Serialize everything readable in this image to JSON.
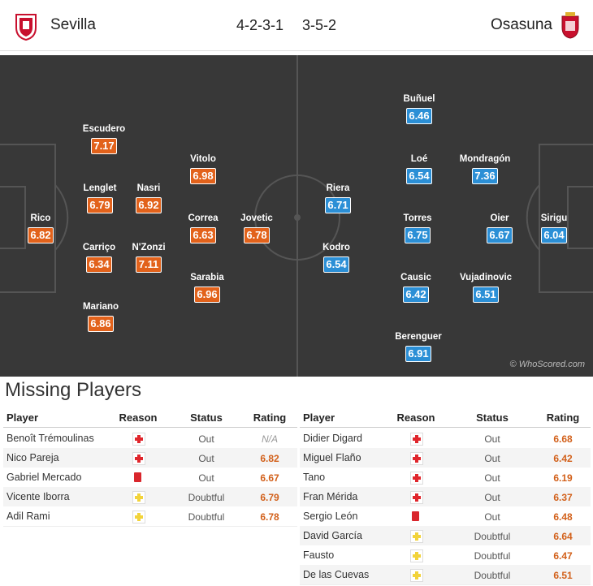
{
  "header": {
    "home_team": "Sevilla",
    "home_formation": "4-2-3-1",
    "away_formation": "3-5-2",
    "away_team": "Osasuna"
  },
  "pitch": {
    "home_players": [
      {
        "name": "Rico",
        "rating": 6.82
      },
      {
        "name": "Escudero",
        "rating": 7.17
      },
      {
        "name": "Lenglet",
        "rating": 6.79
      },
      {
        "name": "Carriço",
        "rating": 6.34
      },
      {
        "name": "Mariano",
        "rating": 6.86
      },
      {
        "name": "Nasri",
        "rating": 6.92
      },
      {
        "name": "N'Zonzi",
        "rating": 7.11
      },
      {
        "name": "Vitolo",
        "rating": 6.98
      },
      {
        "name": "Correa",
        "rating": 6.63
      },
      {
        "name": "Sarabia",
        "rating": 6.96
      },
      {
        "name": "Jovetic",
        "rating": 6.78
      }
    ],
    "away_players": [
      {
        "name": "Buñuel",
        "rating": 6.46
      },
      {
        "name": "Loé",
        "rating": 6.54
      },
      {
        "name": "Torres",
        "rating": 6.75
      },
      {
        "name": "Causic",
        "rating": 6.42
      },
      {
        "name": "Berenguer",
        "rating": 6.91
      },
      {
        "name": "Mondragón",
        "rating": 7.36
      },
      {
        "name": "Oier",
        "rating": 6.67
      },
      {
        "name": "Vujadinovic",
        "rating": 6.51
      },
      {
        "name": "Riera",
        "rating": 6.71
      },
      {
        "name": "Kodro",
        "rating": 6.54
      },
      {
        "name": "Sirigu",
        "rating": 6.04
      }
    ],
    "watermark": "© WhoScored.com"
  },
  "missing": {
    "title": "Missing Players",
    "columns": [
      "Player",
      "Reason",
      "Status",
      "Rating"
    ],
    "home": [
      {
        "player": "Benoît Trémoulinas",
        "reason": "injury",
        "status": "Out",
        "rating": "N/A"
      },
      {
        "player": "Nico Pareja",
        "reason": "injury",
        "status": "Out",
        "rating": 6.82
      },
      {
        "player": "Gabriel Mercado",
        "reason": "red-card",
        "status": "Out",
        "rating": 6.67
      },
      {
        "player": "Vicente Iborra",
        "reason": "doubtful",
        "status": "Doubtful",
        "rating": 6.79
      },
      {
        "player": "Adil Rami",
        "reason": "doubtful",
        "status": "Doubtful",
        "rating": 6.78
      }
    ],
    "away": [
      {
        "player": "Didier Digard",
        "reason": "injury",
        "status": "Out",
        "rating": 6.68
      },
      {
        "player": "Miguel Flaño",
        "reason": "injury",
        "status": "Out",
        "rating": 6.42
      },
      {
        "player": "Tano",
        "reason": "injury",
        "status": "Out",
        "rating": 6.19
      },
      {
        "player": "Fran Mérida",
        "reason": "injury",
        "status": "Out",
        "rating": 6.37
      },
      {
        "player": "Sergio León",
        "reason": "red-card",
        "status": "Out",
        "rating": 6.48
      },
      {
        "player": "David García",
        "reason": "doubtful",
        "status": "Doubtful",
        "rating": 6.64
      },
      {
        "player": "Fausto",
        "reason": "doubtful",
        "status": "Doubtful",
        "rating": 6.47
      },
      {
        "player": "De las Cuevas",
        "reason": "doubtful",
        "status": "Doubtful",
        "rating": 6.51
      }
    ]
  }
}
